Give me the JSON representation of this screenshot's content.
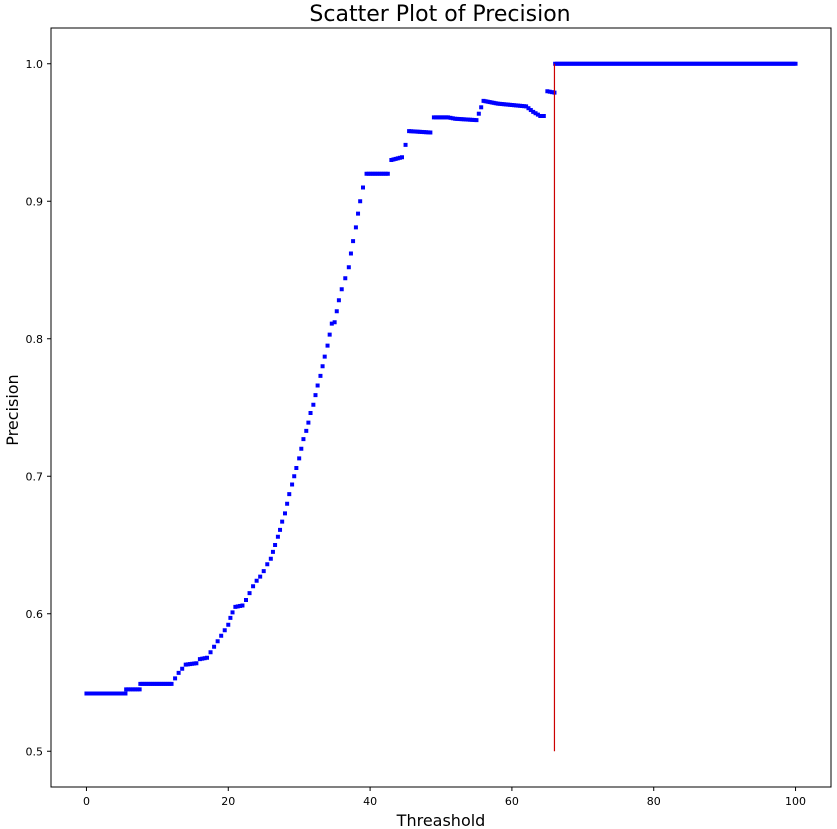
{
  "chart_data": {
    "type": "scatter",
    "title": "Scatter Plot of Precision",
    "xlabel": "Threashold",
    "ylabel": "Precision",
    "xlim": [
      -5,
      105
    ],
    "ylim": [
      0.474,
      1.026
    ],
    "xticks": [
      0,
      20,
      40,
      60,
      80,
      100
    ],
    "yticks": [
      0.5,
      0.6,
      0.7,
      0.8,
      0.9,
      1.0
    ],
    "xtick_labels": [
      "0",
      "20",
      "40",
      "60",
      "80",
      "100"
    ],
    "ytick_labels": [
      "0.5",
      "0.6",
      "0.7",
      "0.8",
      "0.9",
      "1.0"
    ],
    "grid": false,
    "marker_color": "#0000ff",
    "series": [
      {
        "color": "#0000ff",
        "points": [
          [
            0,
            0.542
          ],
          [
            5.5,
            0.542
          ],
          [
            5.6,
            0.545
          ],
          [
            7.5,
            0.545
          ],
          [
            7.6,
            0.549
          ],
          [
            12,
            0.549
          ],
          [
            12.5,
            0.553
          ],
          [
            13,
            0.557
          ],
          [
            13.5,
            0.56
          ],
          [
            14,
            0.563
          ],
          [
            15.5,
            0.564
          ],
          [
            16,
            0.567
          ],
          [
            17,
            0.568
          ],
          [
            17.5,
            0.572
          ],
          [
            18,
            0.576
          ],
          [
            18.5,
            0.58
          ],
          [
            19,
            0.584
          ],
          [
            19.5,
            0.588
          ],
          [
            20,
            0.592
          ],
          [
            20.3,
            0.597
          ],
          [
            20.6,
            0.601
          ],
          [
            21,
            0.605
          ],
          [
            22,
            0.606
          ],
          [
            22.5,
            0.61
          ],
          [
            23,
            0.615
          ],
          [
            23.5,
            0.62
          ],
          [
            24,
            0.624
          ],
          [
            24.5,
            0.627
          ],
          [
            25,
            0.631
          ],
          [
            25.5,
            0.636
          ],
          [
            26,
            0.64
          ],
          [
            26.3,
            0.645
          ],
          [
            26.6,
            0.65
          ],
          [
            27,
            0.656
          ],
          [
            27.3,
            0.661
          ],
          [
            27.6,
            0.667
          ],
          [
            28,
            0.673
          ],
          [
            28.3,
            0.68
          ],
          [
            28.6,
            0.687
          ],
          [
            29,
            0.694
          ],
          [
            29.3,
            0.7
          ],
          [
            29.6,
            0.706
          ],
          [
            30,
            0.713
          ],
          [
            30.3,
            0.72
          ],
          [
            30.6,
            0.727
          ],
          [
            31,
            0.733
          ],
          [
            31.3,
            0.739
          ],
          [
            31.6,
            0.746
          ],
          [
            32,
            0.752
          ],
          [
            32.3,
            0.759
          ],
          [
            32.6,
            0.766
          ],
          [
            33,
            0.773
          ],
          [
            33.3,
            0.78
          ],
          [
            33.6,
            0.787
          ],
          [
            34,
            0.795
          ],
          [
            34.3,
            0.803
          ],
          [
            34.6,
            0.811
          ],
          [
            35,
            0.812
          ],
          [
            35.3,
            0.82
          ],
          [
            35.6,
            0.828
          ],
          [
            36,
            0.836
          ],
          [
            36.5,
            0.844
          ],
          [
            37,
            0.852
          ],
          [
            37.3,
            0.862
          ],
          [
            37.6,
            0.871
          ],
          [
            38,
            0.881
          ],
          [
            38.3,
            0.891
          ],
          [
            38.6,
            0.9
          ],
          [
            39,
            0.91
          ],
          [
            39.5,
            0.92
          ],
          [
            42.5,
            0.92
          ],
          [
            43,
            0.93
          ],
          [
            44.5,
            0.932
          ],
          [
            45,
            0.941
          ],
          [
            45.5,
            0.951
          ],
          [
            48.5,
            0.95
          ],
          [
            49,
            0.961
          ],
          [
            51,
            0.961
          ],
          [
            52,
            0.96
          ],
          [
            55,
            0.959
          ],
          [
            56,
            0.973
          ],
          [
            58,
            0.971
          ],
          [
            60,
            0.97
          ],
          [
            62,
            0.969
          ],
          [
            63,
            0.965
          ],
          [
            64,
            0.962
          ],
          [
            64.5,
            0.962
          ],
          [
            65,
            0.98
          ],
          [
            66,
            0.979
          ],
          [
            66.1,
            1.0
          ],
          [
            100,
            1.0
          ]
        ]
      }
    ],
    "vline": {
      "x": 66,
      "y_from": 0.5,
      "y_to": 1.0,
      "color": "#cc0000"
    }
  }
}
